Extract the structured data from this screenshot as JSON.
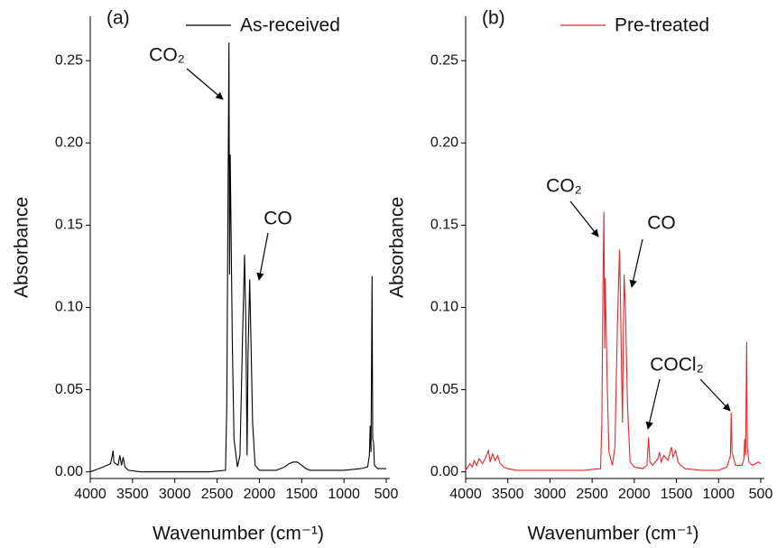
{
  "chart_data": [
    {
      "type": "line",
      "label": "(a)",
      "x_label": "Wavenumber (cm⁻¹)",
      "y_label": "Absorbance",
      "x": [
        4000,
        3950,
        3900,
        3850,
        3800,
        3760,
        3740,
        3730,
        3720,
        3700,
        3670,
        3650,
        3630,
        3610,
        3590,
        3550,
        3400,
        3000,
        2600,
        2400,
        2385,
        2370,
        2360,
        2352,
        2345,
        2335,
        2320,
        2300,
        2260,
        2230,
        2200,
        2175,
        2160,
        2145,
        2135,
        2115,
        2100,
        2080,
        2050,
        2000,
        1800,
        1700,
        1650,
        1600,
        1550,
        1500,
        1450,
        1400,
        1000,
        800,
        720,
        700,
        690,
        680,
        667,
        660,
        650,
        640,
        600,
        500
      ],
      "series": [
        {
          "name": "As-received",
          "color": "#000000",
          "values": [
            0.0,
            0.001,
            0.002,
            0.003,
            0.004,
            0.005,
            0.01,
            0.013,
            0.006,
            0.005,
            0.004,
            0.01,
            0.004,
            0.009,
            0.003,
            0.001,
            0.0,
            0.0,
            0.0,
            0.001,
            0.04,
            0.18,
            0.261,
            0.12,
            0.193,
            0.15,
            0.08,
            0.02,
            0.003,
            0.01,
            0.08,
            0.132,
            0.09,
            0.01,
            0.07,
            0.117,
            0.08,
            0.03,
            0.004,
            0.001,
            0.001,
            0.003,
            0.005,
            0.006,
            0.006,
            0.004,
            0.002,
            0.001,
            0.001,
            0.002,
            0.003,
            0.01,
            0.028,
            0.012,
            0.119,
            0.02,
            0.018,
            0.004,
            0.002,
            0.002
          ]
        }
      ],
      "annotations": [
        "CO₂",
        "CO"
      ],
      "xlim": [
        4000,
        500
      ],
      "xticks": [
        4000,
        3500,
        3000,
        2500,
        2000,
        1500,
        1000,
        500
      ],
      "ylim": [
        -0.004,
        0.277
      ],
      "yticks": [
        {
          "value": 0,
          "label": "0.00"
        },
        {
          "value": 0.05,
          "label": "0.05"
        },
        {
          "value": 0.1,
          "label": "0.10"
        },
        {
          "value": 0.15,
          "label": "0.15"
        },
        {
          "value": 0.2,
          "label": "0.20"
        },
        {
          "value": 0.25,
          "label": "0.25"
        }
      ],
      "legend": "upper right"
    },
    {
      "type": "line",
      "label": "(b)",
      "x_label": "Wavenumber (cm⁻¹)",
      "y_label": "Absorbance",
      "x": [
        4000,
        3950,
        3920,
        3900,
        3870,
        3840,
        3800,
        3760,
        3730,
        3710,
        3680,
        3650,
        3620,
        3590,
        3550,
        3500,
        3400,
        3000,
        2600,
        2400,
        2385,
        2370,
        2360,
        2352,
        2345,
        2335,
        2320,
        2300,
        2260,
        2230,
        2200,
        2175,
        2165,
        2150,
        2140,
        2130,
        2120,
        2105,
        2080,
        2050,
        2000,
        1900,
        1850,
        1830,
        1815,
        1780,
        1720,
        1700,
        1680,
        1650,
        1600,
        1560,
        1540,
        1510,
        1480,
        1450,
        1400,
        1200,
        1000,
        900,
        860,
        850,
        840,
        800,
        720,
        700,
        690,
        680,
        667,
        660,
        640,
        600,
        560,
        530,
        500
      ],
      "series": [
        {
          "name": "Pre-treated",
          "color": "#e8262a",
          "values": [
            0.001,
            0.005,
            0.003,
            0.007,
            0.004,
            0.008,
            0.005,
            0.009,
            0.013,
            0.006,
            0.011,
            0.007,
            0.01,
            0.005,
            0.003,
            0.002,
            0.001,
            0.001,
            0.001,
            0.002,
            0.03,
            0.12,
            0.158,
            0.075,
            0.118,
            0.09,
            0.05,
            0.012,
            0.004,
            0.015,
            0.09,
            0.135,
            0.11,
            0.06,
            0.03,
            0.08,
            0.12,
            0.1,
            0.04,
            0.006,
            0.003,
            0.002,
            0.004,
            0.021,
            0.006,
            0.004,
            0.008,
            0.012,
            0.006,
            0.01,
            0.007,
            0.015,
            0.009,
            0.013,
            0.006,
            0.004,
            0.002,
            0.001,
            0.001,
            0.003,
            0.01,
            0.036,
            0.012,
            0.004,
            0.004,
            0.008,
            0.02,
            0.01,
            0.079,
            0.015,
            0.006,
            0.004,
            0.005,
            0.006,
            0.005
          ]
        }
      ],
      "annotations": [
        "CO₂",
        "CO",
        "COCl₂"
      ],
      "xlim": [
        4000,
        500
      ],
      "xticks": [
        4000,
        3500,
        3000,
        2500,
        2000,
        1500,
        1000,
        500
      ],
      "ylim": [
        -0.004,
        0.277
      ],
      "yticks": [
        {
          "value": 0,
          "label": "0.00"
        },
        {
          "value": 0.05,
          "label": "0.05"
        },
        {
          "value": 0.1,
          "label": "0.10"
        },
        {
          "value": 0.15,
          "label": "0.15"
        },
        {
          "value": 0.2,
          "label": "0.20"
        },
        {
          "value": 0.25,
          "label": "0.25"
        }
      ],
      "legend": "upper right"
    }
  ]
}
